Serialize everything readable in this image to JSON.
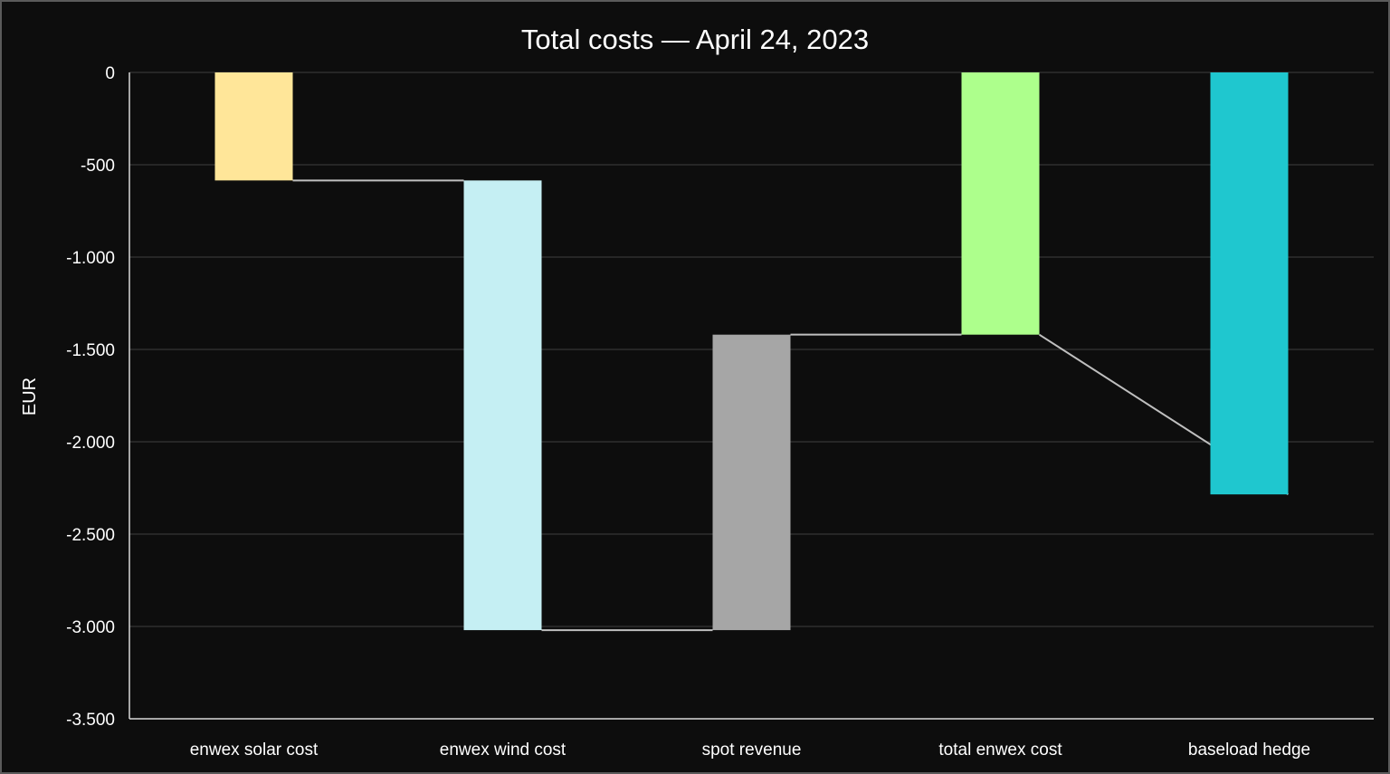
{
  "chart_data": {
    "type": "bar",
    "subtype": "waterfall",
    "title": "Total costs — April 24, 2023",
    "xlabel": "",
    "ylabel": "EUR",
    "ylim": [
      -3500,
      0
    ],
    "yticks": [
      0,
      -500,
      -1000,
      -1500,
      -2000,
      -2500,
      -3000,
      -3500
    ],
    "ytick_labels": [
      "0",
      "-500",
      "-1.000",
      "-1.500",
      "-2.000",
      "-2.500",
      "-3.000",
      "-3.500"
    ],
    "grid": true,
    "legend": "none",
    "categories": [
      "enwex solar cost",
      "enwex wind cost",
      "spot revenue",
      "total enwex cost",
      "baseload hedge"
    ],
    "bars": [
      {
        "category": "enwex solar cost",
        "start": 0,
        "end": -585,
        "color": "#ffe699"
      },
      {
        "category": "enwex wind cost",
        "start": -585,
        "end": -3020,
        "color": "#c5eff3"
      },
      {
        "category": "spot revenue",
        "start": -3020,
        "end": -1420,
        "color": "#a6a6a6"
      },
      {
        "category": "total enwex cost",
        "start": 0,
        "end": -1420,
        "color": "#adff8c"
      },
      {
        "category": "baseload hedge",
        "start": 0,
        "end": -2285,
        "color": "#1fc7cf"
      }
    ],
    "connectors": [
      {
        "from": 0,
        "to": 1,
        "from_value": -585,
        "to_value": -585
      },
      {
        "from": 1,
        "to": 2,
        "from_value": -3020,
        "to_value": -3020
      },
      {
        "from": 2,
        "to": 3,
        "from_value": -1420,
        "to_value": -1420
      },
      {
        "from": 3,
        "to": 4,
        "from_value": -1420,
        "to_value": -2285
      }
    ]
  }
}
